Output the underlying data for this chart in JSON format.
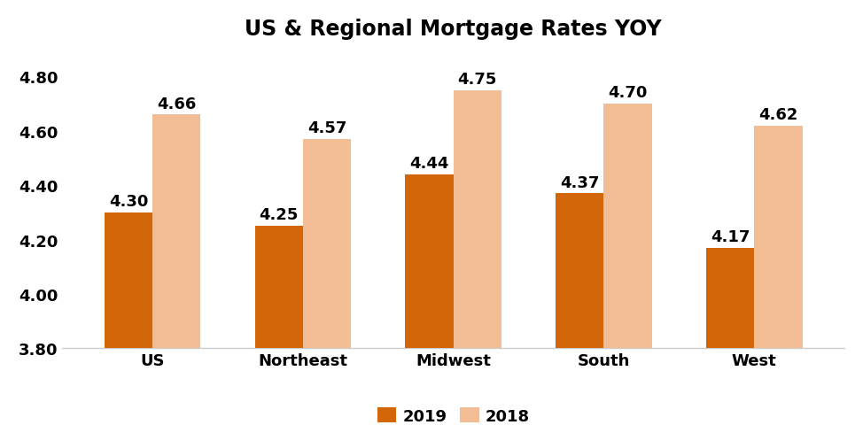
{
  "title": "US & Regional Mortgage Rates YOY",
  "categories": [
    "US",
    "Northeast",
    "Midwest",
    "South",
    "West"
  ],
  "values_2019": [
    4.3,
    4.25,
    4.44,
    4.37,
    4.17
  ],
  "values_2018": [
    4.66,
    4.57,
    4.75,
    4.7,
    4.62
  ],
  "color_2019": "#D4660A",
  "color_2018": "#F2BC94",
  "ylim": [
    3.8,
    4.9
  ],
  "yticks": [
    3.8,
    4.0,
    4.2,
    4.4,
    4.6,
    4.8
  ],
  "legend_labels": [
    "2019",
    "2018"
  ],
  "bar_width": 0.32,
  "title_fontsize": 17,
  "tick_fontsize": 13,
  "annotation_fontsize": 13,
  "legend_fontsize": 13,
  "background_color": "#ffffff"
}
